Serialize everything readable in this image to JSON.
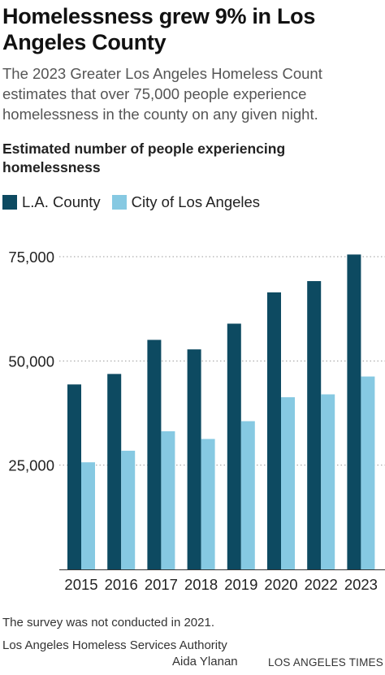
{
  "title": "Homelessness grew 9% in Los Angeles County",
  "subtitle": "The 2023 Greater Los Angeles Homeless Count estimates that over 75,000 people experience homelessness in the county on any given night.",
  "chart_heading": "Estimated number of people experiencing homelessness",
  "colors": {
    "la_county": "#0d4a61",
    "city_la": "#86c9e2",
    "axis": "#333333",
    "grid": "#9a9a9a"
  },
  "chart_data": {
    "type": "bar",
    "categories": [
      "2015",
      "2016",
      "2017",
      "2018",
      "2019",
      "2020",
      "2022",
      "2023"
    ],
    "series": [
      {
        "name": "L.A. County",
        "values": [
          44359,
          46874,
          55048,
          52765,
          58936,
          66436,
          69144,
          75518
        ]
      },
      {
        "name": "City of Los Angeles",
        "values": [
          25686,
          28464,
          33138,
          31285,
          35550,
          41290,
          41980,
          46260
        ]
      }
    ],
    "yticks": [
      25000,
      50000,
      75000
    ],
    "ytick_labels": [
      "25,000",
      "50,000",
      "75,000"
    ],
    "ylim": [
      0,
      75000
    ],
    "grid": true,
    "legend": "top-left"
  },
  "footnote": "The survey was not conducted in 2021.",
  "source": "Los Angeles Homeless Services Authority",
  "credit": "Aida Ylanan",
  "publisher": "LOS ANGELES TIMES"
}
